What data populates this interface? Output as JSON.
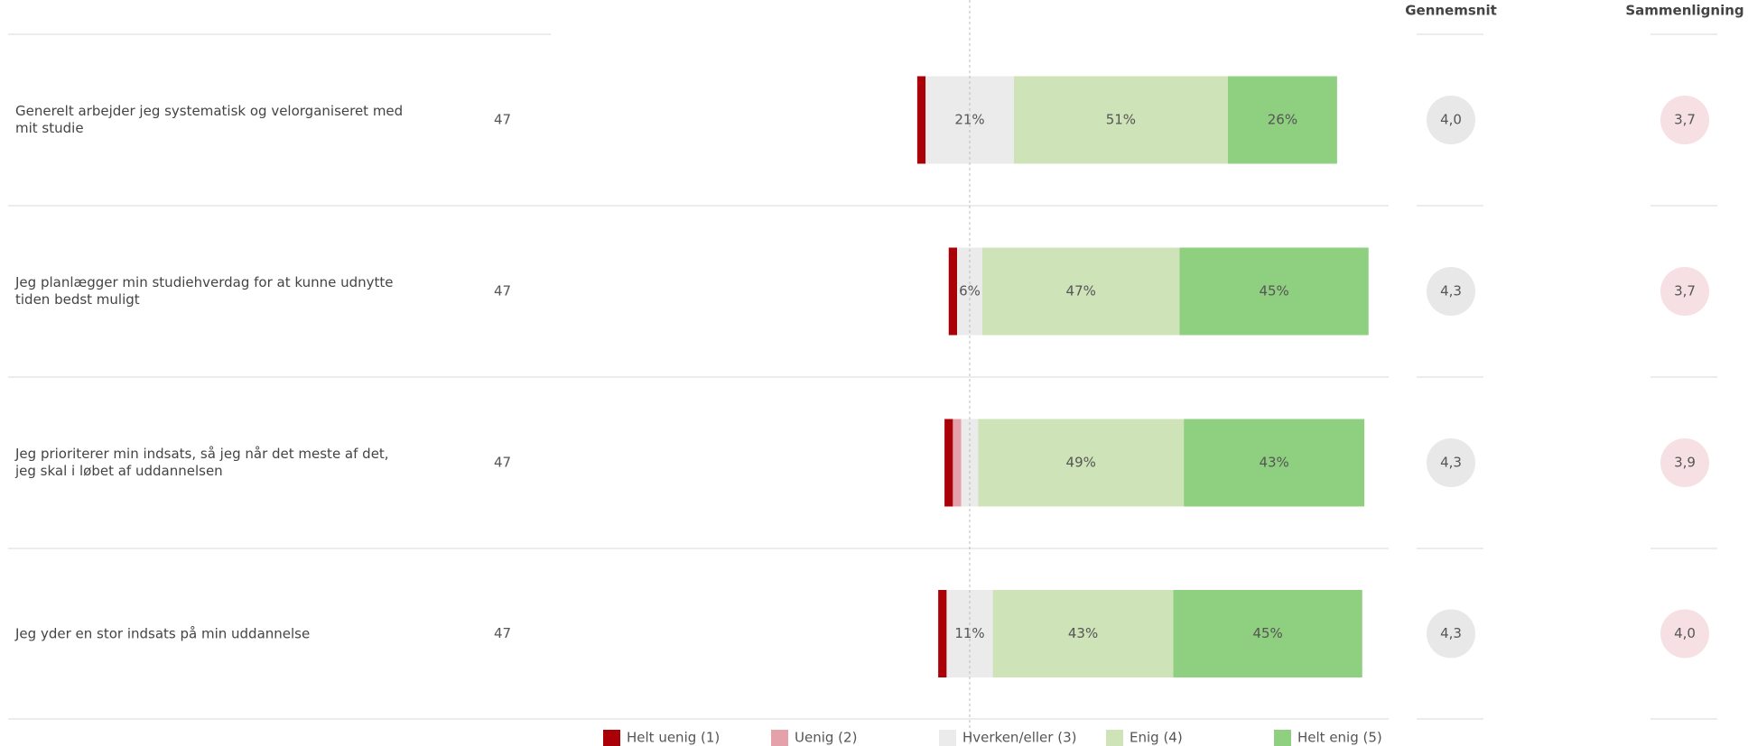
{
  "chart_data": {
    "type": "diverging_stacked_bar",
    "categories": [
      "Generelt arbejder jeg systematisk og velorganiseret med mit studie",
      "Jeg planlægger min studiehverdag for at kunne udnytte tiden bedst muligt",
      "Jeg prioriterer min indsats, så jeg når det meste af det, jeg skal i løbet af uddannelsen",
      "Jeg yder en stor indsats på min uddannelse"
    ],
    "n": [
      47,
      47,
      47,
      47
    ],
    "series": [
      {
        "name": "Helt uenig (1)",
        "color": "#aa0008",
        "values": [
          2,
          2,
          2,
          2
        ],
        "value_labels": [
          null,
          null,
          null,
          null
        ]
      },
      {
        "name": "Uenig (2)",
        "color": "#e5a1a9",
        "values": [
          0,
          0,
          2,
          0
        ],
        "value_labels": [
          null,
          null,
          null,
          null
        ]
      },
      {
        "name": "Hverken/eller (3)",
        "color": "#ebebeb",
        "values": [
          21,
          6,
          4,
          11
        ],
        "value_labels": [
          "21%",
          "6%",
          null,
          "11%"
        ]
      },
      {
        "name": "Enig (4)",
        "color": "#cfe3b9",
        "values": [
          51,
          47,
          49,
          43
        ],
        "value_labels": [
          "51%",
          "47%",
          "49%",
          "43%"
        ]
      },
      {
        "name": "Helt enig (5)",
        "color": "#8ecf80",
        "values": [
          26,
          45,
          43,
          45
        ],
        "value_labels": [
          "26%",
          "45%",
          "43%",
          "45%"
        ]
      }
    ],
    "mean": {
      "header": "Gennemsnit",
      "color": "#e8e8e8",
      "values": [
        4.0,
        4.3,
        4.3,
        4.3
      ],
      "value_labels": [
        "4,0",
        "4,3",
        "4,3",
        "4,3"
      ]
    },
    "comparison": {
      "header": "Sammenligning",
      "color": "#f6e0e3",
      "values": [
        3.7,
        3.7,
        3.9,
        4.0
      ],
      "value_labels": [
        "3,7",
        "3,7",
        "3,9",
        "4,0"
      ]
    }
  }
}
